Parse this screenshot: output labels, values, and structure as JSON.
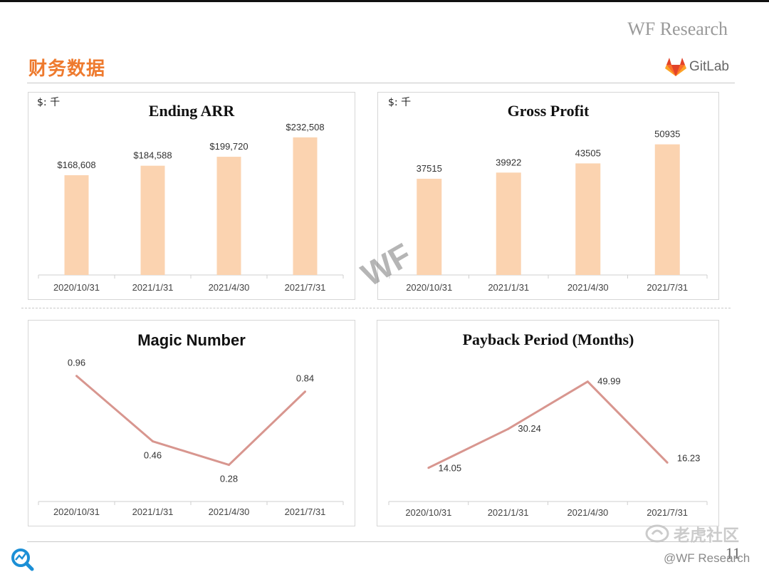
{
  "header": {
    "brand": "WF Research",
    "title": "财务数据",
    "gitlab_label": "GitLab"
  },
  "watermark": "WF",
  "footer": {
    "page_number": "11",
    "social_name": "老虎社区",
    "social_handle": "@WF Research"
  },
  "colors": {
    "accent": "#ee7a2e",
    "bar": "#fbd3b0",
    "line": "#d8968f"
  },
  "chart_data": [
    {
      "type": "bar",
      "title": "Ending ARR",
      "unit": "$: 千",
      "categories": [
        "2020/10/31",
        "2021/1/31",
        "2021/4/30",
        "2021/7/31"
      ],
      "values": [
        168608,
        184588,
        199720,
        232508
      ],
      "labels": [
        "$168,608",
        "$184,588",
        "$199,720",
        "$232,508"
      ],
      "ylim": [
        0,
        260000
      ]
    },
    {
      "type": "bar",
      "title": "Gross Profit",
      "unit": "$: 千",
      "categories": [
        "2020/10/31",
        "2021/1/31",
        "2021/4/30",
        "2021/7/31"
      ],
      "values": [
        37515,
        39922,
        43505,
        50935
      ],
      "labels": [
        "37515",
        "39922",
        "43505",
        "50935"
      ],
      "ylim": [
        0,
        60000
      ]
    },
    {
      "type": "line",
      "title": "Magic Number",
      "categories": [
        "2020/10/31",
        "2021/1/31",
        "2021/4/30",
        "2021/7/31"
      ],
      "values": [
        0.96,
        0.46,
        0.28,
        0.84
      ],
      "labels": [
        "0.96",
        "0.46",
        "0.28",
        "0.84"
      ],
      "ylim": [
        0.0,
        1.1
      ]
    },
    {
      "type": "line",
      "title": "Payback Period (Months)",
      "categories": [
        "2020/10/31",
        "2021/1/31",
        "2021/4/30",
        "2021/7/31"
      ],
      "values": [
        14.05,
        30.24,
        49.99,
        16.23
      ],
      "labels": [
        "14.05",
        "30.24",
        "49.99",
        "16.23"
      ],
      "ylim": [
        0,
        60
      ]
    }
  ]
}
